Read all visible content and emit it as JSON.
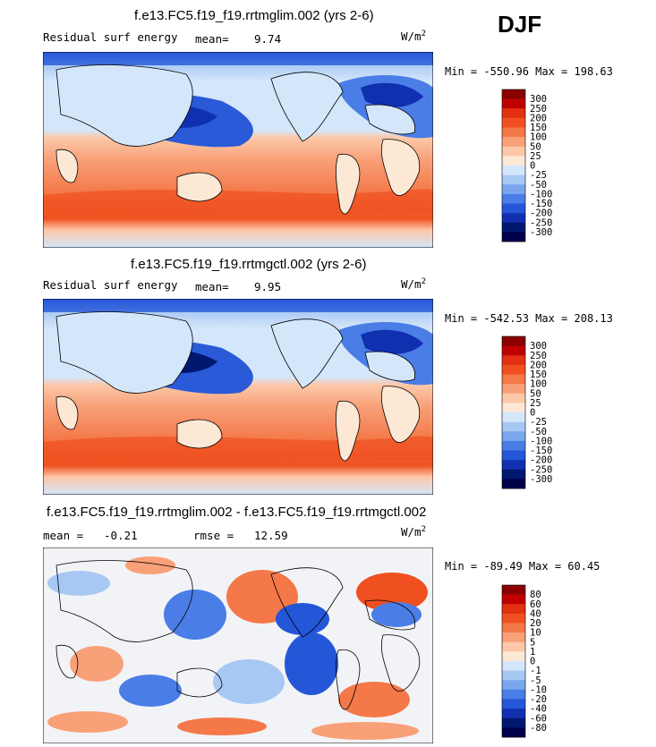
{
  "season": "DJF",
  "units_base": "W/m",
  "units_exp": "2",
  "panels": [
    {
      "title": "f.e13.FC5.f19_f19.rrtmglim.002 (yrs 2-6)",
      "variable": "Residual surf energy",
      "stat1_label": "mean=",
      "stat1_value": "9.74",
      "minmax": "Min = -550.96 Max = 198.63",
      "min": -550.96,
      "max": 198.63
    },
    {
      "title": "f.e13.FC5.f19_f19.rrtmgctl.002 (yrs 2-6)",
      "variable": "Residual surf energy",
      "stat1_label": "mean=",
      "stat1_value": "9.95",
      "minmax": "Min = -542.53 Max = 208.13",
      "min": -542.53,
      "max": 208.13
    },
    {
      "title": "f.e13.FC5.f19_f19.rrtmglim.002 - f.e13.FC5.f19_f19.rrtmgctl.002",
      "stat1_label": "mean =",
      "stat1_value": "-0.21",
      "stat2_label": "rmse =",
      "stat2_value": "12.59",
      "minmax": "Min = -89.49 Max = 60.45",
      "min": -89.49,
      "max": 60.45
    }
  ],
  "chart_data": [
    {
      "type": "heatmap",
      "title": "f.e13.FC5.f19_f19.rrtmglim.002 (yrs 2-6)",
      "variable": "Residual surf energy",
      "units": "W/m2",
      "season": "DJF",
      "mean": 9.74,
      "min": -550.96,
      "max": 198.63,
      "colorbar_levels": [
        "300",
        "250",
        "200",
        "150",
        "100",
        "50",
        "25",
        "0",
        "-25",
        "-50",
        "-100",
        "-150",
        "-200",
        "-250",
        "-300"
      ],
      "colorbar_colors": [
        "#8b0000",
        "#c00000",
        "#e23010",
        "#f05020",
        "#f47848",
        "#f8a078",
        "#fcc8a8",
        "#fde8d6",
        "#d4e6fa",
        "#a8c8f4",
        "#7aa6ee",
        "#4a7ee6",
        "#2456d8",
        "#1030b0",
        "#001870",
        "#00004a"
      ]
    },
    {
      "type": "heatmap",
      "title": "f.e13.FC5.f19_f19.rrtmgctl.002 (yrs 2-6)",
      "variable": "Residual surf energy",
      "units": "W/m2",
      "season": "DJF",
      "mean": 9.95,
      "min": -542.53,
      "max": 208.13,
      "colorbar_levels": [
        "300",
        "250",
        "200",
        "150",
        "100",
        "50",
        "25",
        "0",
        "-25",
        "-50",
        "-100",
        "-150",
        "-200",
        "-250",
        "-300"
      ],
      "colorbar_colors": [
        "#8b0000",
        "#c00000",
        "#e23010",
        "#f05020",
        "#f47848",
        "#f8a078",
        "#fcc8a8",
        "#fde8d6",
        "#d4e6fa",
        "#a8c8f4",
        "#7aa6ee",
        "#4a7ee6",
        "#2456d8",
        "#1030b0",
        "#001870",
        "#00004a"
      ]
    },
    {
      "type": "heatmap",
      "title": "f.e13.FC5.f19_f19.rrtmglim.002 - f.e13.FC5.f19_f19.rrtmgctl.002",
      "units": "W/m2",
      "mean": -0.21,
      "rmse": 12.59,
      "min": -89.49,
      "max": 60.45,
      "colorbar_levels": [
        "80",
        "60",
        "40",
        "20",
        "10",
        "5",
        "1",
        "0",
        "-1",
        "-5",
        "-10",
        "-20",
        "-40",
        "-60",
        "-80"
      ],
      "colorbar_colors": [
        "#8b0000",
        "#c00000",
        "#e23010",
        "#f05020",
        "#f47848",
        "#f8a078",
        "#fcc8a8",
        "#fde8d6",
        "#d4e6fa",
        "#a8c8f4",
        "#7aa6ee",
        "#4a7ee6",
        "#2456d8",
        "#1030b0",
        "#001870",
        "#00004a"
      ]
    }
  ]
}
